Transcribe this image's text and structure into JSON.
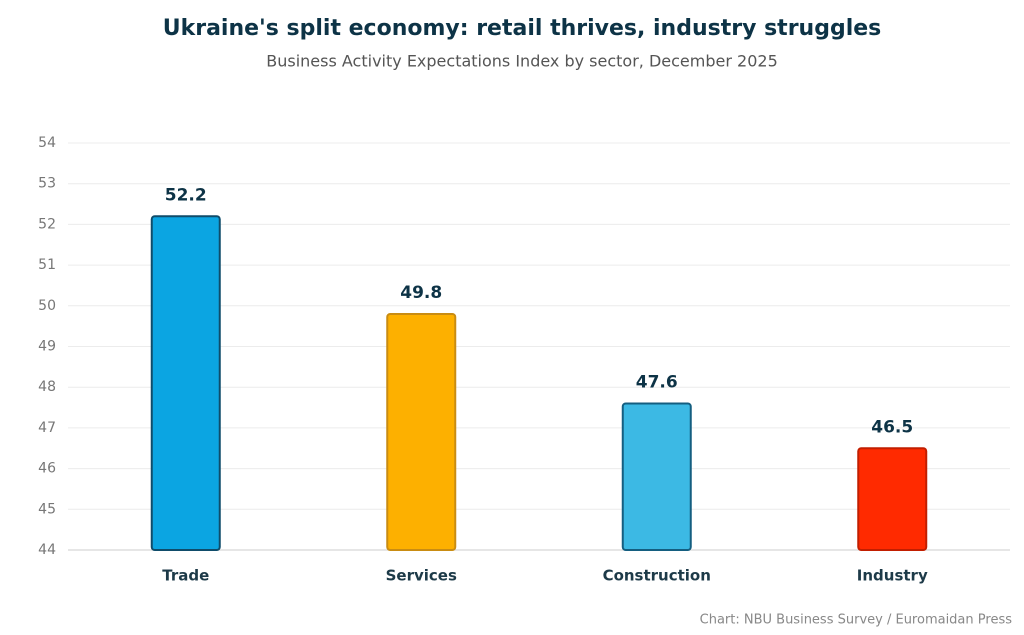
{
  "chart_data": {
    "type": "bar",
    "title": "Ukraine's split economy: retail thrives, industry struggles",
    "subtitle": "Business Activity Expectations Index by sector, December 2025",
    "source": "Chart: NBU Business Survey / Euromaidan Press",
    "categories": [
      "Trade",
      "Services",
      "Construction",
      "Industry"
    ],
    "values": [
      52.2,
      49.8,
      47.6,
      46.5
    ],
    "colors": [
      "#0ba5e2",
      "#fdb000",
      "#3cb9e4",
      "#ff2a00"
    ],
    "border_colors": [
      "#0f4c6a",
      "#c98c12",
      "#145e80",
      "#c21e00"
    ],
    "ylim": [
      44,
      54
    ],
    "yticks": [
      44,
      45,
      46,
      47,
      48,
      49,
      50,
      51,
      52,
      53,
      54
    ],
    "grid": true
  }
}
